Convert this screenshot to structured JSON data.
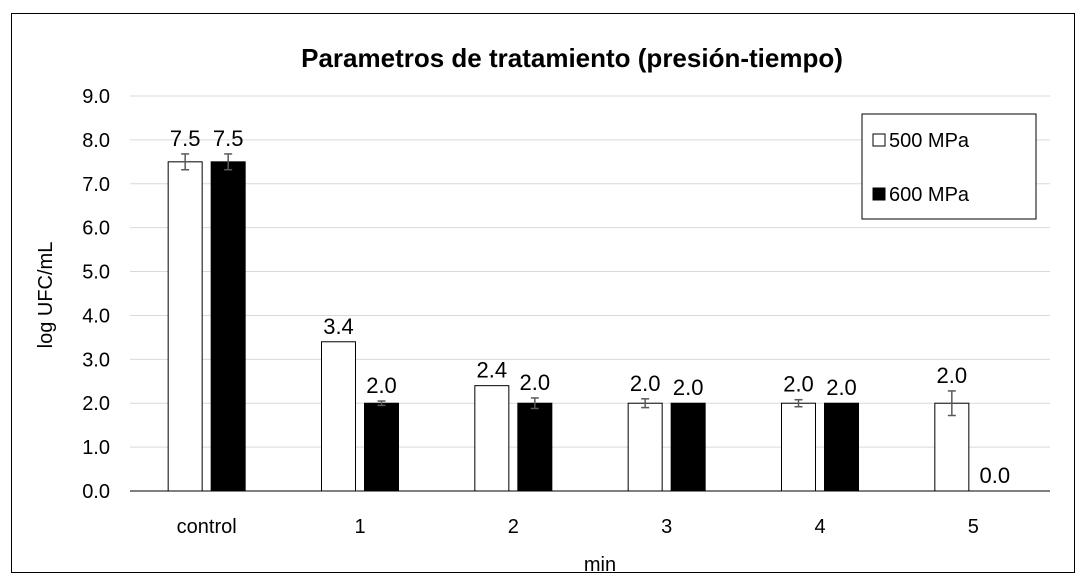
{
  "chart_data": {
    "type": "bar",
    "title": "Parametros de tratamiento (presión-tiempo)",
    "xlabel": "min",
    "ylabel": "log UFC/mL",
    "ylim": [
      0,
      9
    ],
    "ytick_step": 1,
    "ytick_labels": [
      "0.0",
      "1.0",
      "2.0",
      "3.0",
      "4.0",
      "5.0",
      "6.0",
      "7.0",
      "8.0",
      "9.0"
    ],
    "categories": [
      "control",
      "1",
      "2",
      "3",
      "4",
      "5"
    ],
    "series": [
      {
        "name": "500 MPa",
        "fill": "#ffffff",
        "values": [
          7.5,
          3.4,
          2.4,
          2.0,
          2.0,
          2.0
        ],
        "errors": [
          0.18,
          0.0,
          0.0,
          0.1,
          0.08,
          0.28
        ],
        "labels": [
          "7.5",
          "3.4",
          "2.4",
          "2.0",
          "2.0",
          "2.0"
        ]
      },
      {
        "name": "600 MPa",
        "fill": "#000000",
        "values": [
          7.5,
          2.0,
          2.0,
          2.0,
          2.0,
          0.0
        ],
        "errors": [
          0.18,
          0.05,
          0.12,
          0.0,
          0.0,
          0.0
        ],
        "labels": [
          "7.5",
          "2.0",
          "2.0",
          "2.0",
          "2.0",
          "0.0"
        ]
      }
    ],
    "grid": true,
    "legend_position": "top-right",
    "colors": {
      "gridline": "#d9d9d9",
      "axis": "#000000",
      "error_bar": "#595959"
    }
  }
}
